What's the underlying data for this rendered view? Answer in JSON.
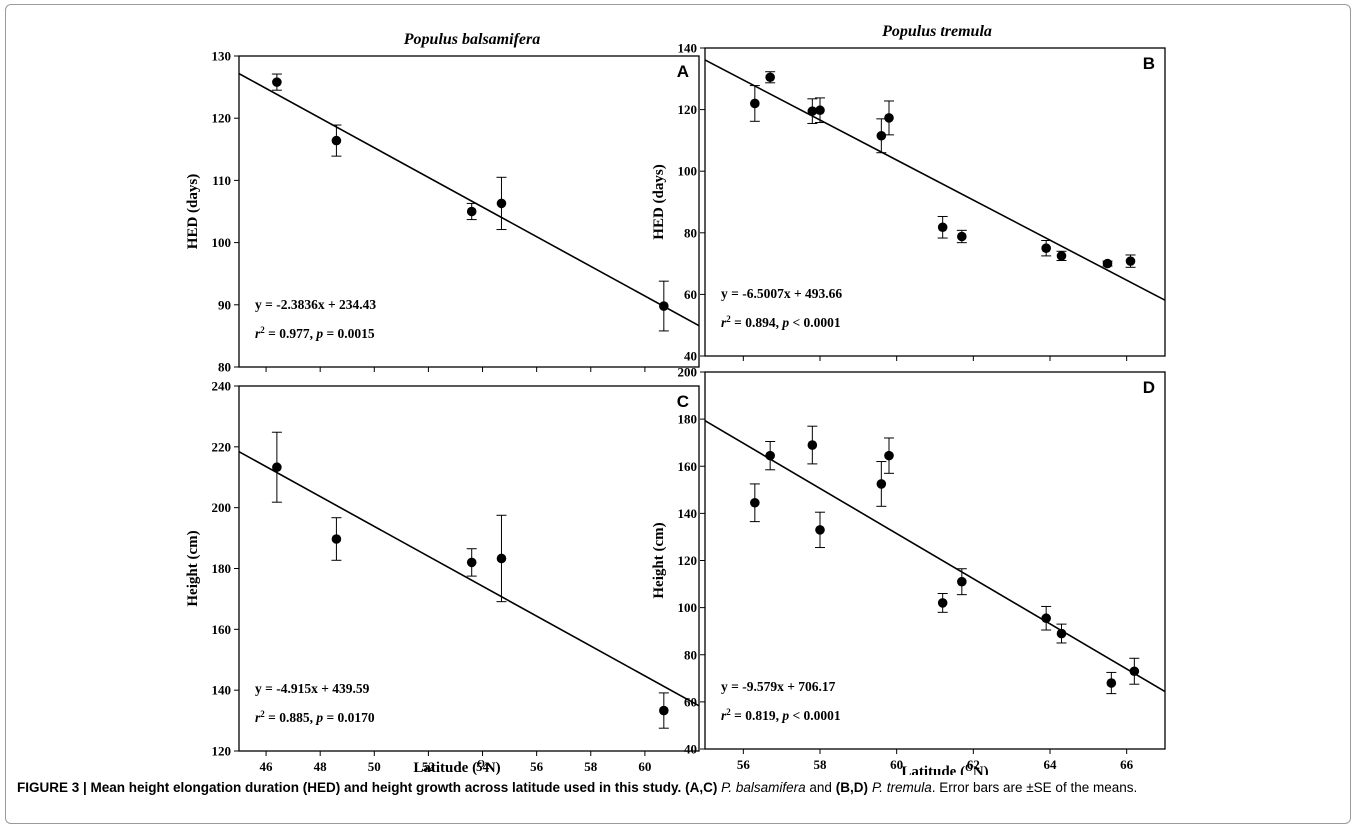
{
  "caption": {
    "fig_label": "FIGURE 3 | Mean height elongation duration (HED) and height growth across latitude used in this study.",
    "panels_ac": "(A,C)",
    "species_ac": "P. balsamifera",
    "and_text": "and",
    "panels_bd": "(B,D)",
    "species_bd": "P. tremula",
    "tail": ". Error bars are ±SE of the means."
  },
  "species_titles": {
    "left": "Populus balsamifera",
    "right": "Populus tremula"
  },
  "x_axis_label": "Latitude (",
  "x_axis_sup": "O",
  "x_axis_unit": "N)",
  "chart_data": [
    {
      "panel": "A",
      "type": "scatter",
      "ylabel": "HED (days)",
      "xlim": [
        45,
        62
      ],
      "ylim": [
        80,
        130
      ],
      "xticks": [
        46,
        48,
        50,
        52,
        54,
        56,
        58,
        60
      ],
      "yticks": [
        80,
        90,
        100,
        110,
        120,
        130
      ],
      "show_x_tick_labels": false,
      "points": [
        {
          "x": 46.4,
          "y": 125.8,
          "se": 1.3
        },
        {
          "x": 48.6,
          "y": 116.4,
          "se": 2.5
        },
        {
          "x": 53.6,
          "y": 105.0,
          "se": 1.3
        },
        {
          "x": 54.7,
          "y": 106.3,
          "se": 4.2
        },
        {
          "x": 60.7,
          "y": 89.8,
          "se": 4.0
        }
      ],
      "fit": {
        "slope": -2.3836,
        "intercept": 234.43
      },
      "equation": "y = -2.3836x + 234.43",
      "stats": {
        "r2": "0.977",
        "p_op": "=",
        "p": "0.0015"
      }
    },
    {
      "panel": "B",
      "type": "scatter",
      "ylabel": "HED (days)",
      "xlim": [
        55,
        67
      ],
      "ylim": [
        40,
        140
      ],
      "xticks": [
        56,
        58,
        60,
        62,
        64,
        66
      ],
      "yticks": [
        40,
        60,
        80,
        100,
        120,
        140
      ],
      "show_x_tick_labels": false,
      "points": [
        {
          "x": 56.3,
          "y": 122.0,
          "se": 5.8
        },
        {
          "x": 56.7,
          "y": 130.5,
          "se": 1.8
        },
        {
          "x": 57.8,
          "y": 119.5,
          "se": 4.0
        },
        {
          "x": 58.0,
          "y": 119.8,
          "se": 4.0
        },
        {
          "x": 59.6,
          "y": 111.5,
          "se": 5.5
        },
        {
          "x": 59.8,
          "y": 117.3,
          "se": 5.5
        },
        {
          "x": 61.2,
          "y": 81.8,
          "se": 3.5
        },
        {
          "x": 61.7,
          "y": 78.8,
          "se": 2.0
        },
        {
          "x": 63.9,
          "y": 75.0,
          "se": 2.5
        },
        {
          "x": 64.3,
          "y": 72.5,
          "se": 1.5
        },
        {
          "x": 65.5,
          "y": 70.0,
          "se": 0.8
        },
        {
          "x": 66.1,
          "y": 70.8,
          "se": 2.0
        }
      ],
      "fit": {
        "slope": -6.5007,
        "intercept": 493.66
      },
      "equation": "y = -6.5007x + 493.66",
      "stats": {
        "r2": "0.894",
        "p_op": "<",
        "p": "0.0001"
      }
    },
    {
      "panel": "C",
      "type": "scatter",
      "ylabel": "Height (cm)",
      "xlim": [
        45,
        62
      ],
      "ylim": [
        120,
        240
      ],
      "xticks": [
        46,
        48,
        50,
        52,
        54,
        56,
        58,
        60
      ],
      "yticks": [
        120,
        140,
        160,
        180,
        200,
        220,
        240
      ],
      "show_x_tick_labels": true,
      "points": [
        {
          "x": 46.4,
          "y": 213.3,
          "se": 11.5
        },
        {
          "x": 48.6,
          "y": 189.7,
          "se": 7.0
        },
        {
          "x": 53.6,
          "y": 182.0,
          "se": 4.5
        },
        {
          "x": 54.7,
          "y": 183.3,
          "se": 14.2
        },
        {
          "x": 60.7,
          "y": 133.3,
          "se": 5.8
        }
      ],
      "fit": {
        "slope": -4.915,
        "intercept": 439.59
      },
      "equation": "y = -4.915x + 439.59",
      "stats": {
        "r2": "0.885",
        "p_op": "=",
        "p": "0.0170"
      }
    },
    {
      "panel": "D",
      "type": "scatter",
      "ylabel": "Height (cm)",
      "xlim": [
        55,
        67
      ],
      "ylim": [
        40,
        200
      ],
      "xticks": [
        56,
        58,
        60,
        62,
        64,
        66
      ],
      "yticks": [
        40,
        60,
        80,
        100,
        120,
        140,
        160,
        180,
        200
      ],
      "show_x_tick_labels": true,
      "points": [
        {
          "x": 56.3,
          "y": 144.5,
          "se": 8.0
        },
        {
          "x": 56.7,
          "y": 164.5,
          "se": 6.0
        },
        {
          "x": 57.8,
          "y": 169.0,
          "se": 8.0
        },
        {
          "x": 58.0,
          "y": 133.0,
          "se": 7.5
        },
        {
          "x": 59.6,
          "y": 152.5,
          "se": 9.5
        },
        {
          "x": 59.8,
          "y": 164.5,
          "se": 7.5
        },
        {
          "x": 61.2,
          "y": 102.0,
          "se": 4.0
        },
        {
          "x": 61.7,
          "y": 111.0,
          "se": 5.5
        },
        {
          "x": 63.9,
          "y": 95.5,
          "se": 5.0
        },
        {
          "x": 64.3,
          "y": 89.0,
          "se": 4.0
        },
        {
          "x": 65.6,
          "y": 68.0,
          "se": 4.5
        },
        {
          "x": 66.2,
          "y": 73.0,
          "se": 5.5
        }
      ],
      "fit": {
        "slope": -9.579,
        "intercept": 706.17
      },
      "equation": "y = -9.579x + 706.17",
      "stats": {
        "r2": "0.819",
        "p_op": "<",
        "p": "0.0001"
      }
    }
  ]
}
